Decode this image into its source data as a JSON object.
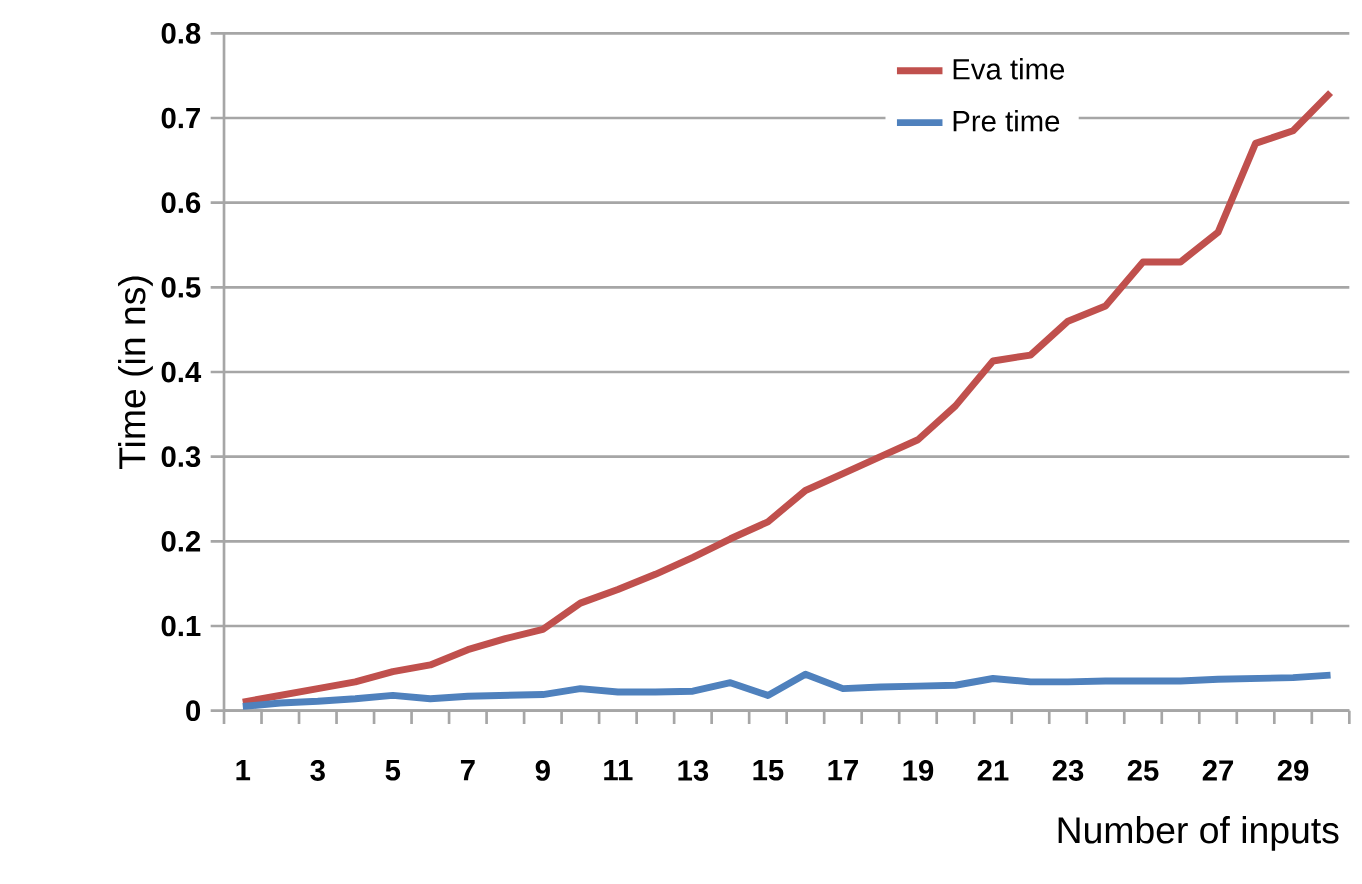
{
  "chart_data": {
    "type": "line",
    "xlabel": "Number of inputs",
    "ylabel": "Time (in ns)",
    "categories": [
      "1",
      null,
      "3",
      null,
      "5",
      null,
      "7",
      null,
      "9",
      null,
      "11",
      null,
      "13",
      null,
      "15",
      null,
      "17",
      null,
      "19",
      null,
      "21",
      null,
      "23",
      null,
      "25",
      null,
      "27",
      null,
      "29",
      null
    ],
    "series": [
      {
        "name": "Eva time",
        "color": "#c0504d",
        "values": [
          0.01,
          0.018,
          0.026,
          0.034,
          0.046,
          0.054,
          0.072,
          0.085,
          0.096,
          0.127,
          0.143,
          0.161,
          0.181,
          0.203,
          0.223,
          0.26,
          0.28,
          0.3,
          0.32,
          0.36,
          0.413,
          0.42,
          0.46,
          0.478,
          0.53,
          0.53,
          0.565,
          0.67,
          0.685,
          0.73
        ]
      },
      {
        "name": "Pre time",
        "color": "#4f81bd",
        "values": [
          0.005,
          0.009,
          0.011,
          0.014,
          0.018,
          0.014,
          0.017,
          0.018,
          0.019,
          0.026,
          0.022,
          0.022,
          0.023,
          0.033,
          0.018,
          0.043,
          0.026,
          0.028,
          0.029,
          0.03,
          0.038,
          0.034,
          0.034,
          0.035,
          0.035,
          0.035,
          0.037,
          0.038,
          0.039,
          0.042
        ]
      }
    ],
    "ylim": [
      0,
      0.8
    ],
    "yticks": [
      0,
      0.1,
      0.2,
      0.3,
      0.4,
      0.5,
      0.6,
      0.7,
      0.8
    ],
    "grid": "y",
    "legend": "top right"
  }
}
